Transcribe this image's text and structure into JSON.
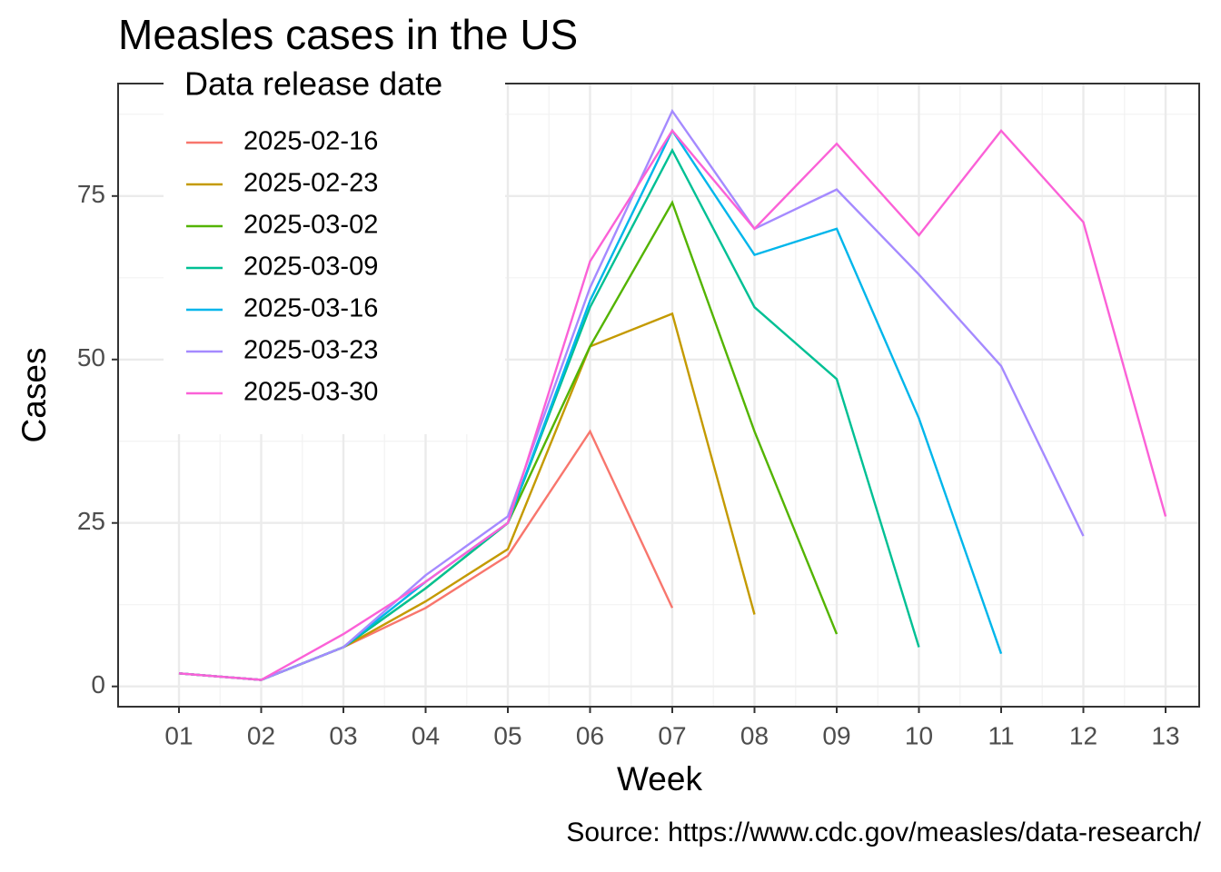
{
  "chart_data": {
    "type": "line",
    "title": "Measles cases in the US",
    "xlabel": "Week",
    "ylabel": "Cases",
    "caption": "Source: https://www.cdc.gov/measles/data-research/",
    "legend_title": "Data release date",
    "legend_position": "top-left",
    "grid": true,
    "categories": [
      "01",
      "02",
      "03",
      "04",
      "05",
      "06",
      "07",
      "08",
      "09",
      "10",
      "11",
      "12",
      "13"
    ],
    "ylim": [
      -3.1,
      92.2
    ],
    "yticks": [
      0,
      25,
      50,
      75
    ],
    "series": [
      {
        "name": "2025-02-16",
        "color": "#F8766D",
        "values": [
          2,
          1,
          6,
          12,
          20,
          39,
          12,
          null,
          null,
          null,
          null,
          null,
          null
        ]
      },
      {
        "name": "2025-02-23",
        "color": "#C49A00",
        "values": [
          2,
          1,
          6,
          13,
          21,
          52,
          57,
          11,
          null,
          null,
          null,
          null,
          null
        ]
      },
      {
        "name": "2025-03-02",
        "color": "#53B400",
        "values": [
          2,
          1,
          6,
          15,
          25,
          52,
          74,
          39,
          8,
          null,
          null,
          null,
          null
        ]
      },
      {
        "name": "2025-03-09",
        "color": "#00C094",
        "values": [
          2,
          1,
          6,
          15,
          25,
          58,
          82,
          58,
          47,
          6,
          null,
          null,
          null
        ]
      },
      {
        "name": "2025-03-16",
        "color": "#00B6EB",
        "values": [
          2,
          1,
          6,
          16,
          25,
          59,
          85,
          66,
          70,
          41,
          5,
          null,
          null
        ]
      },
      {
        "name": "2025-03-23",
        "color": "#A58AFF",
        "values": [
          2,
          1,
          6,
          17,
          26,
          61,
          88,
          70,
          76,
          63,
          49,
          23,
          null
        ]
      },
      {
        "name": "2025-03-30",
        "color": "#FB61D7",
        "values": [
          2,
          1,
          8,
          16,
          25,
          65,
          85,
          70,
          83,
          69,
          85,
          71,
          26
        ]
      }
    ]
  }
}
